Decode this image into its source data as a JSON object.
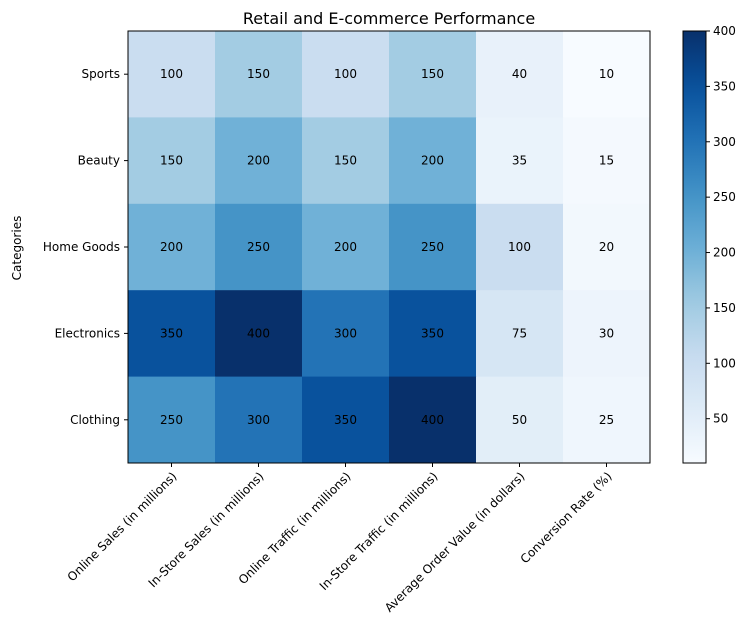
{
  "chart_data": {
    "type": "heatmap",
    "title": "Retail and E-commerce Performance",
    "ylabel": "Categories",
    "xlabel": "",
    "rows": [
      "Sports",
      "Beauty",
      "Home Goods",
      "Electronics",
      "Clothing"
    ],
    "columns": [
      "Online Sales (in millions)",
      "In-Store Sales (in millions)",
      "Online Traffic (in millions)",
      "In-Store Traffic (in millions)",
      "Average Order Value (in dollars)",
      "Conversion Rate (%)"
    ],
    "values": [
      [
        100,
        150,
        100,
        150,
        40,
        10
      ],
      [
        150,
        200,
        150,
        200,
        35,
        15
      ],
      [
        200,
        250,
        200,
        250,
        100,
        20
      ],
      [
        350,
        400,
        300,
        350,
        75,
        30
      ],
      [
        250,
        300,
        350,
        400,
        50,
        25
      ]
    ],
    "colormap": "Blues",
    "vmin": 10,
    "vmax": 400,
    "colorbar_ticks": [
      50,
      100,
      150,
      200,
      250,
      300,
      350,
      400
    ],
    "grid": false
  }
}
